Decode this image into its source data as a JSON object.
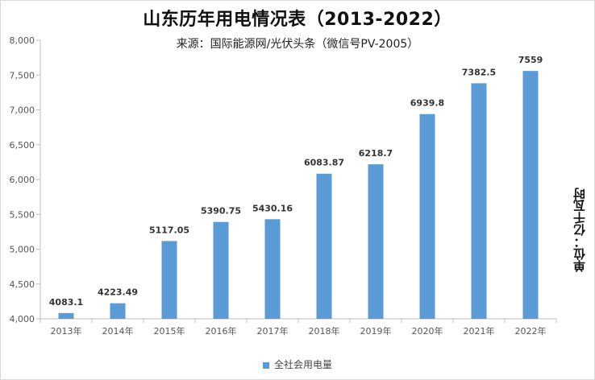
{
  "chart_data": {
    "type": "bar",
    "title": "山东历年用电情况表（2013-2022）",
    "subtitle": "来源：国际能源网/光伏头条（微信号PV-2005）",
    "unit_label": "单位：亿千瓦时",
    "categories": [
      "2013年",
      "2014年",
      "2015年",
      "2016年",
      "2017年",
      "2018年",
      "2019年",
      "2020年",
      "2021年",
      "2022年"
    ],
    "series": [
      {
        "name": "全社会用电量",
        "values": [
          4083.1,
          4223.49,
          5117.05,
          5390.75,
          5430.16,
          6083.87,
          6218.7,
          6939.8,
          7382.5,
          7559
        ],
        "labels": [
          "4083.1",
          "4223.49",
          "5117.05",
          "5390.75",
          "5430.16",
          "6083.87",
          "6218.7",
          "6939.8",
          "7382.5",
          "7559"
        ]
      }
    ],
    "ylim": [
      4000,
      8000
    ],
    "yticks": [
      4000,
      4500,
      5000,
      5500,
      6000,
      6500,
      7000,
      7500,
      8000
    ],
    "ytick_labels": [
      "4,000",
      "4,500",
      "5,000",
      "5,500",
      "6,000",
      "6,500",
      "7,000",
      "7,500",
      "8,000"
    ],
    "legend_position": "bottom",
    "grid": false,
    "colors": {
      "bar": "#5b9bd5",
      "axis": "#bfbfbf"
    }
  }
}
